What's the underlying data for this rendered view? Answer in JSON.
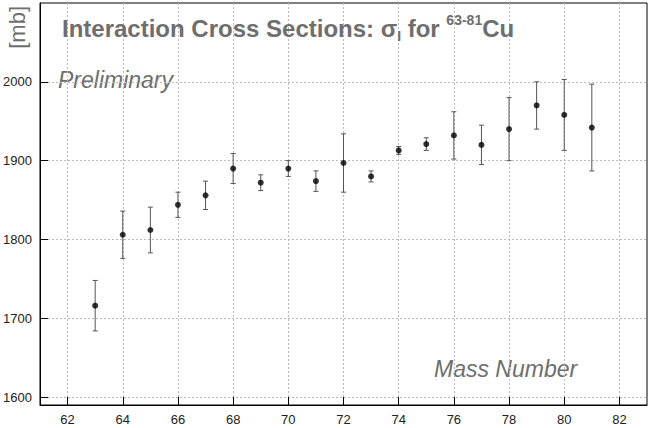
{
  "chart_data": {
    "type": "scatter",
    "title": [
      "Interaction Cross Sections: σ",
      {
        "sub": "I"
      },
      " for ",
      {
        "sup": "63-81"
      },
      "Cu"
    ],
    "xlabel": "Mass Number",
    "ylabel": "[mb]",
    "annotations": [
      "Preliminary"
    ],
    "x": [
      63,
      64,
      65,
      66,
      67,
      68,
      69,
      70,
      71,
      72,
      73,
      74,
      75,
      76,
      77,
      78,
      79,
      80,
      81
    ],
    "values": [
      1716,
      1806,
      1812,
      1844,
      1856,
      1890,
      1872,
      1890,
      1874,
      1897,
      1880,
      1913,
      1921,
      1932,
      1920,
      1940,
      1970,
      1958,
      1942
    ],
    "errors": [
      32,
      30,
      29,
      16,
      18,
      19,
      10,
      10,
      13,
      37,
      7,
      5,
      8,
      30,
      25,
      40,
      30,
      45,
      55
    ],
    "color": "#000000",
    "marker": "circle",
    "xlim": [
      61,
      83
    ],
    "xticks": [
      62,
      64,
      66,
      68,
      70,
      72,
      74,
      76,
      78,
      80,
      82
    ],
    "ylim": [
      1590,
      2100
    ],
    "yticks": [
      1600,
      1700,
      1800,
      1900,
      2000
    ],
    "grid": true
  }
}
